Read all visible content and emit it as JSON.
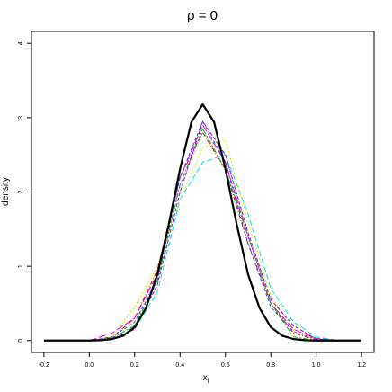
{
  "chart_data": {
    "type": "line",
    "title": "ρ = 0",
    "xlabel": "x",
    "xlabel_sub": "i",
    "ylabel": "density",
    "xlim": [
      -0.255,
      1.255
    ],
    "ylim": [
      -0.16,
      4.16
    ],
    "xticks": [
      -0.2,
      {
        "value": 0,
        "label": "0.0"
      },
      0.2,
      0.4,
      0.6,
      0.8,
      {
        "value": 1,
        "label": "1.0"
      },
      1.2
    ],
    "yticks": [
      0,
      1,
      2,
      3,
      4
    ],
    "x": [
      0,
      0.1,
      0.2,
      0.3,
      0.4,
      0.5,
      0.6,
      0.7,
      0.8,
      0.9,
      1,
      1.1
    ],
    "series": [
      {
        "color": "#00e5e5",
        "dash": "6,3",
        "values": [
          0,
          0.02,
          0.15,
          0.65,
          1.9,
          2.4,
          2.5,
          1.7,
          0.7,
          0.25,
          0.05,
          0
        ]
      },
      {
        "color": "#e5e500",
        "dash": "2,2",
        "values": [
          0,
          0.05,
          0.45,
          1.0,
          1.9,
          2.6,
          2.7,
          1.6,
          0.6,
          0.15,
          0.02,
          0
        ]
      },
      {
        "color": "#e00000",
        "dash": "5,2,1,2",
        "values": [
          0,
          0.04,
          0.3,
          0.95,
          2.2,
          2.8,
          2.3,
          1.3,
          0.5,
          0.1,
          0.01,
          0
        ]
      },
      {
        "color": "#e000e0",
        "dash": "8,3",
        "values": [
          0,
          0.1,
          0.3,
          0.9,
          2.2,
          2.9,
          2.4,
          1.4,
          0.5,
          0.15,
          0.03,
          0
        ]
      },
      {
        "color": "#2040e0",
        "dash": "3,3",
        "values": [
          0,
          0.05,
          0.25,
          0.8,
          2.2,
          2.95,
          2.4,
          1.3,
          0.45,
          0.12,
          0.02,
          0
        ]
      },
      {
        "color": "#00b000",
        "dash": "6,2,2,2",
        "values": [
          0,
          0.03,
          0.2,
          0.8,
          2.1,
          2.85,
          2.3,
          1.4,
          0.5,
          0.05,
          0,
          0
        ]
      },
      {
        "color": "#9400d3",
        "dash": "4,2",
        "values": [
          0,
          0.02,
          0.15,
          0.75,
          2.0,
          2.95,
          2.5,
          1.45,
          0.55,
          0.2,
          0.02,
          0
        ]
      },
      {
        "color": "#808080",
        "dash": "1,2",
        "values": [
          0,
          0.04,
          0.25,
          0.85,
          2.1,
          2.8,
          2.5,
          1.4,
          0.5,
          0.12,
          0.02,
          0
        ]
      },
      {
        "color": "#000000",
        "width": 2.2,
        "x": [
          -0.2,
          -0.15,
          -0.1,
          -0.05,
          0,
          0.05,
          0.1,
          0.15,
          0.2,
          0.25,
          0.3,
          0.35,
          0.4,
          0.45,
          0.5,
          0.55,
          0.6,
          0.65,
          0.7,
          0.75,
          0.8,
          0.85,
          0.9,
          0.95,
          1,
          1.05,
          1.1,
          1.15,
          1.2
        ],
        "values": [
          0,
          0,
          0,
          0,
          0,
          0.005,
          0.02,
          0.065,
          0.18,
          0.44,
          0.89,
          1.56,
          2.31,
          2.94,
          3.18,
          2.94,
          2.31,
          1.56,
          0.89,
          0.44,
          0.18,
          0.065,
          0.02,
          0.005,
          0,
          0,
          0,
          0,
          0
        ]
      }
    ]
  }
}
